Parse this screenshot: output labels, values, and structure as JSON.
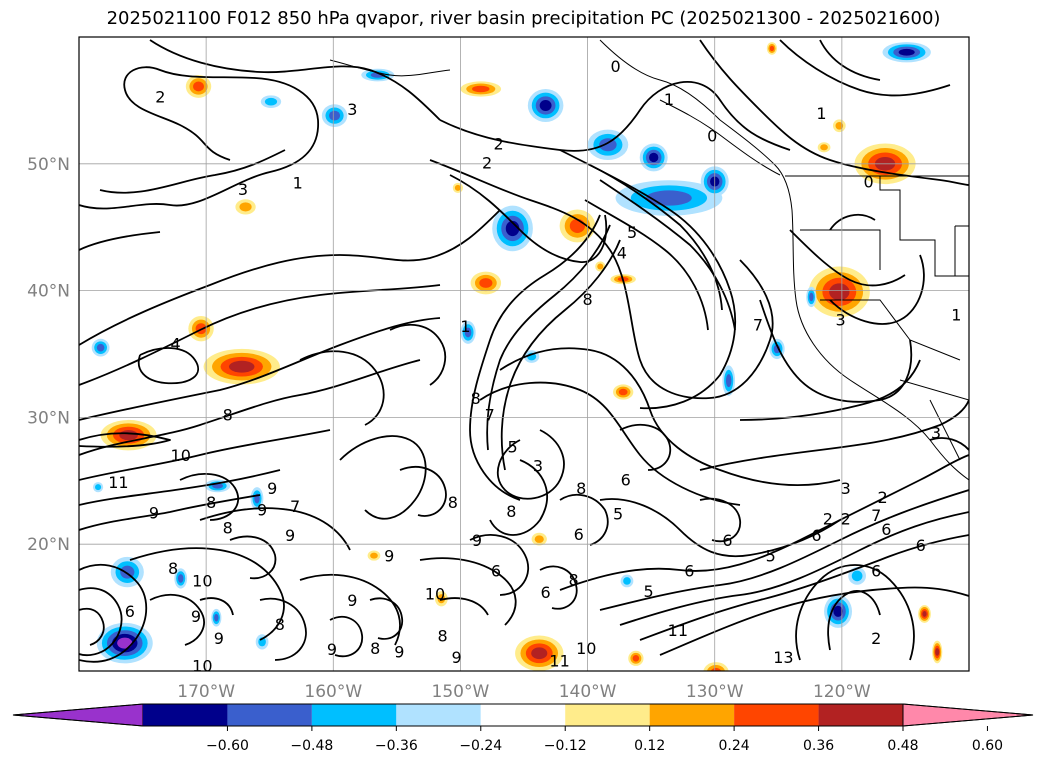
{
  "title": "2025021100 F012 850 hPa qvapor, river basin precipitation PC (2025021300 - 2025021600)",
  "colors": {
    "map_background": "#ffffff",
    "grid": "#a0a0a0",
    "tick_label": "#808080",
    "contour": "#000000"
  },
  "map": {
    "longitude_range": [
      -180,
      -110
    ],
    "latitude_range": [
      10,
      60
    ],
    "longitude_ticks": [
      {
        "value": -170,
        "label": "170°W"
      },
      {
        "value": -160,
        "label": "160°W"
      },
      {
        "value": -150,
        "label": "150°W"
      },
      {
        "value": -140,
        "label": "140°W"
      },
      {
        "value": -130,
        "label": "130°W"
      },
      {
        "value": -120,
        "label": "120°W"
      }
    ],
    "latitude_ticks": [
      {
        "value": 50,
        "label": "50°N"
      },
      {
        "value": 40,
        "label": "40°N"
      },
      {
        "value": 30,
        "label": "30°N"
      },
      {
        "value": 20,
        "label": "20°N"
      }
    ],
    "contour_labels": [
      {
        "text": "0",
        "lon": -137.8,
        "lat": 57.6
      },
      {
        "text": "2",
        "lon": -173.6,
        "lat": 55.2
      },
      {
        "text": "3",
        "lon": -158.5,
        "lat": 54.2
      },
      {
        "text": "1",
        "lon": -162.8,
        "lat": 48.4
      },
      {
        "text": "3",
        "lon": -167.1,
        "lat": 47.9
      },
      {
        "text": "1",
        "lon": -133.6,
        "lat": 55.0
      },
      {
        "text": "0",
        "lon": -130.2,
        "lat": 52.1
      },
      {
        "text": "1",
        "lon": -121.6,
        "lat": 53.9
      },
      {
        "text": "0",
        "lon": -117.9,
        "lat": 48.5
      },
      {
        "text": "2",
        "lon": -147.0,
        "lat": 51.5
      },
      {
        "text": "2",
        "lon": -147.9,
        "lat": 50.0
      },
      {
        "text": "4",
        "lon": -137.3,
        "lat": 42.9
      },
      {
        "text": "5",
        "lon": -136.5,
        "lat": 44.5
      },
      {
        "text": "8",
        "lon": -140.0,
        "lat": 39.2
      },
      {
        "text": "7",
        "lon": -126.6,
        "lat": 37.2
      },
      {
        "text": "3",
        "lon": -120.1,
        "lat": 37.6
      },
      {
        "text": "4",
        "lon": -172.4,
        "lat": 35.7
      },
      {
        "text": "1",
        "lon": -149.6,
        "lat": 37.1
      },
      {
        "text": "8",
        "lon": -148.8,
        "lat": 31.4
      },
      {
        "text": "7",
        "lon": -147.7,
        "lat": 30.1
      },
      {
        "text": "8",
        "lon": -168.3,
        "lat": 30.1
      },
      {
        "text": "10",
        "lon": -172.0,
        "lat": 26.9
      },
      {
        "text": "5",
        "lon": -145.9,
        "lat": 27.6
      },
      {
        "text": "3",
        "lon": -143.9,
        "lat": 26.1
      },
      {
        "text": "3",
        "lon": -119.7,
        "lat": 24.3
      },
      {
        "text": "2",
        "lon": -116.8,
        "lat": 23.6
      },
      {
        "text": "3",
        "lon": -112.6,
        "lat": 28.7
      },
      {
        "text": "7",
        "lon": -117.3,
        "lat": 22.2
      },
      {
        "text": "6",
        "lon": -116.5,
        "lat": 21.1
      },
      {
        "text": "2",
        "lon": -119.7,
        "lat": 21.9
      },
      {
        "text": "2",
        "lon": -121.1,
        "lat": 21.9
      },
      {
        "text": "6",
        "lon": -122.0,
        "lat": 20.6
      },
      {
        "text": "6",
        "lon": -113.8,
        "lat": 19.8
      },
      {
        "text": "9",
        "lon": -164.8,
        "lat": 24.3
      },
      {
        "text": "9",
        "lon": -174.1,
        "lat": 22.4
      },
      {
        "text": "8",
        "lon": -169.6,
        "lat": 23.2
      },
      {
        "text": "11",
        "lon": -176.9,
        "lat": 24.8
      },
      {
        "text": "9",
        "lon": -163.4,
        "lat": 20.6
      },
      {
        "text": "8",
        "lon": -168.3,
        "lat": 21.2
      },
      {
        "text": "9",
        "lon": -148.7,
        "lat": 20.2
      },
      {
        "text": "8",
        "lon": -146.0,
        "lat": 22.5
      },
      {
        "text": "8",
        "lon": -150.6,
        "lat": 23.2
      },
      {
        "text": "7",
        "lon": -163.0,
        "lat": 22.9
      },
      {
        "text": "6",
        "lon": -140.7,
        "lat": 20.7
      },
      {
        "text": "5",
        "lon": -137.6,
        "lat": 22.3
      },
      {
        "text": "6",
        "lon": -129.0,
        "lat": 20.2
      },
      {
        "text": "6",
        "lon": -137.0,
        "lat": 25.0
      },
      {
        "text": "8",
        "lon": -140.5,
        "lat": 24.3
      },
      {
        "text": "6",
        "lon": -132.0,
        "lat": 17.8
      },
      {
        "text": "9",
        "lon": -165.6,
        "lat": 22.6
      },
      {
        "text": "6",
        "lon": -176.0,
        "lat": 14.6
      },
      {
        "text": "10",
        "lon": -170.3,
        "lat": 17.0
      },
      {
        "text": "8",
        "lon": -172.6,
        "lat": 18.0
      },
      {
        "text": "9",
        "lon": -170.8,
        "lat": 14.2
      },
      {
        "text": "8",
        "lon": -164.2,
        "lat": 13.6
      },
      {
        "text": "9",
        "lon": -158.5,
        "lat": 15.5
      },
      {
        "text": "9",
        "lon": -155.6,
        "lat": 19.0
      },
      {
        "text": "10",
        "lon": -152.0,
        "lat": 16.0
      },
      {
        "text": "9",
        "lon": -154.8,
        "lat": 11.4
      },
      {
        "text": "8",
        "lon": -156.7,
        "lat": 11.7
      },
      {
        "text": "9",
        "lon": -160.1,
        "lat": 11.6
      },
      {
        "text": "9",
        "lon": -150.3,
        "lat": 11.0
      },
      {
        "text": "8",
        "lon": -151.4,
        "lat": 12.7
      },
      {
        "text": "9",
        "lon": -169.0,
        "lat": 12.5
      },
      {
        "text": "10",
        "lon": -170.3,
        "lat": 10.3
      },
      {
        "text": "6",
        "lon": -143.3,
        "lat": 16.1
      },
      {
        "text": "8",
        "lon": -141.1,
        "lat": 17.1
      },
      {
        "text": "6",
        "lon": -147.2,
        "lat": 17.8
      },
      {
        "text": "5",
        "lon": -135.2,
        "lat": 16.2
      },
      {
        "text": "5",
        "lon": -125.6,
        "lat": 19.0
      },
      {
        "text": "11",
        "lon": -132.9,
        "lat": 13.1
      },
      {
        "text": "10",
        "lon": -140.1,
        "lat": 11.7
      },
      {
        "text": "11",
        "lon": -142.2,
        "lat": 10.7
      },
      {
        "text": "13",
        "lon": -124.6,
        "lat": 11.0
      },
      {
        "text": "6",
        "lon": -117.3,
        "lat": 17.8
      },
      {
        "text": "2",
        "lon": -117.3,
        "lat": 12.5
      },
      {
        "text": "1",
        "lon": -111.0,
        "lat": 38.0
      }
    ],
    "shaded_patches": [
      {
        "lon": -170.6,
        "lat": 56.1,
        "rlon": 1.0,
        "rlat": 0.9,
        "level": 0.36
      },
      {
        "lon": -166.9,
        "lat": 46.6,
        "rlon": 0.8,
        "rlat": 0.6,
        "level": 0.24
      },
      {
        "lon": -156.5,
        "lat": 57.0,
        "rlon": 1.3,
        "rlat": 0.5,
        "level": -0.36
      },
      {
        "lon": -164.9,
        "lat": 54.9,
        "rlon": 0.8,
        "rlat": 0.5,
        "level": -0.24
      },
      {
        "lon": -159.9,
        "lat": 53.8,
        "rlon": 1.0,
        "rlat": 0.9,
        "level": -0.36
      },
      {
        "lon": -143.3,
        "lat": 54.6,
        "rlon": 1.4,
        "rlat": 1.3,
        "level": -0.48
      },
      {
        "lon": -138.4,
        "lat": 51.5,
        "rlon": 1.6,
        "rlat": 1.2,
        "level": -0.36
      },
      {
        "lon": -148.4,
        "lat": 55.9,
        "rlon": 1.6,
        "rlat": 0.6,
        "level": 0.36
      },
      {
        "lon": -133.6,
        "lat": 47.3,
        "rlon": 4.2,
        "rlat": 1.4,
        "level": -0.36
      },
      {
        "lon": -130.0,
        "lat": 48.6,
        "rlon": 1.1,
        "rlat": 1.2,
        "level": -0.48
      },
      {
        "lon": -134.8,
        "lat": 50.5,
        "rlon": 1.1,
        "rlat": 1.1,
        "level": -0.48
      },
      {
        "lon": -145.9,
        "lat": 44.9,
        "rlon": 1.6,
        "rlat": 1.8,
        "level": -0.48
      },
      {
        "lon": -140.8,
        "lat": 45.1,
        "rlon": 1.4,
        "rlat": 1.3,
        "level": 0.36
      },
      {
        "lon": -116.6,
        "lat": 50.0,
        "rlon": 2.4,
        "rlat": 1.6,
        "level": 0.48
      },
      {
        "lon": -114.9,
        "lat": 58.8,
        "rlon": 1.9,
        "rlat": 0.8,
        "level": -0.48
      },
      {
        "lon": -120.2,
        "lat": 39.9,
        "rlon": 2.4,
        "rlat": 2.0,
        "level": 0.48
      },
      {
        "lon": -148.0,
        "lat": 40.6,
        "rlon": 1.2,
        "rlat": 0.9,
        "level": 0.36
      },
      {
        "lon": -137.2,
        "lat": 40.9,
        "rlon": 1.0,
        "rlat": 0.4,
        "level": 0.36
      },
      {
        "lon": -170.4,
        "lat": 37.0,
        "rlon": 1.0,
        "rlat": 1.0,
        "level": 0.36
      },
      {
        "lon": -167.2,
        "lat": 34.0,
        "rlon": 3.0,
        "rlat": 1.4,
        "level": 0.48
      },
      {
        "lon": -176.1,
        "lat": 28.6,
        "rlon": 2.2,
        "rlat": 1.2,
        "level": 0.48
      },
      {
        "lon": -178.3,
        "lat": 35.5,
        "rlon": 0.7,
        "rlat": 0.7,
        "level": -0.36
      },
      {
        "lon": -149.4,
        "lat": 36.7,
        "rlon": 0.6,
        "rlat": 0.9,
        "level": -0.36
      },
      {
        "lon": -128.9,
        "lat": 32.9,
        "rlon": 0.5,
        "rlat": 1.2,
        "level": -0.36
      },
      {
        "lon": -125.1,
        "lat": 35.4,
        "rlon": 0.6,
        "rlat": 0.8,
        "level": -0.36
      },
      {
        "lon": -122.4,
        "lat": 39.5,
        "rlon": 0.4,
        "rlat": 0.8,
        "level": -0.36
      },
      {
        "lon": -137.2,
        "lat": 32.0,
        "rlon": 0.8,
        "rlat": 0.6,
        "level": 0.36
      },
      {
        "lon": -144.4,
        "lat": 34.8,
        "rlon": 0.6,
        "rlat": 0.5,
        "level": -0.24
      },
      {
        "lon": -176.2,
        "lat": 17.8,
        "rlon": 1.3,
        "rlat": 1.2,
        "level": -0.36
      },
      {
        "lon": -176.4,
        "lat": 12.2,
        "rlon": 2.2,
        "rlat": 1.6,
        "level": -0.6
      },
      {
        "lon": -169.1,
        "lat": 24.6,
        "rlon": 1.0,
        "rlat": 0.5,
        "level": -0.36
      },
      {
        "lon": -166.0,
        "lat": 23.6,
        "rlon": 0.5,
        "rlat": 0.9,
        "level": -0.36
      },
      {
        "lon": -172.0,
        "lat": 17.3,
        "rlon": 0.5,
        "rlat": 0.8,
        "level": -0.36
      },
      {
        "lon": -169.2,
        "lat": 14.2,
        "rlon": 0.4,
        "rlat": 0.7,
        "level": -0.36
      },
      {
        "lon": -165.6,
        "lat": 12.3,
        "rlon": 0.5,
        "rlat": 0.6,
        "level": -0.24
      },
      {
        "lon": -143.8,
        "lat": 11.4,
        "rlon": 1.9,
        "rlat": 1.4,
        "level": 0.48
      },
      {
        "lon": -136.2,
        "lat": 11.0,
        "rlon": 0.6,
        "rlat": 0.6,
        "level": 0.36
      },
      {
        "lon": -129.9,
        "lat": 9.9,
        "rlon": 1.0,
        "rlat": 0.8,
        "level": 0.36
      },
      {
        "lon": -120.3,
        "lat": 14.7,
        "rlon": 1.1,
        "rlat": 1.3,
        "level": -0.48
      },
      {
        "lon": -118.8,
        "lat": 17.5,
        "rlon": 0.7,
        "rlat": 0.7,
        "level": -0.24
      },
      {
        "lon": -113.5,
        "lat": 14.5,
        "rlon": 0.5,
        "rlat": 0.7,
        "level": 0.48
      },
      {
        "lon": -112.5,
        "lat": 11.5,
        "rlon": 0.4,
        "rlat": 0.9,
        "level": 0.48
      },
      {
        "lon": -151.5,
        "lat": 15.7,
        "rlon": 0.5,
        "rlat": 0.6,
        "level": 0.24
      },
      {
        "lon": -143.8,
        "lat": 20.4,
        "rlon": 0.6,
        "rlat": 0.5,
        "level": 0.24
      },
      {
        "lon": -156.8,
        "lat": 19.1,
        "rlon": 0.5,
        "rlat": 0.4,
        "level": 0.24
      },
      {
        "lon": -136.9,
        "lat": 17.1,
        "rlon": 0.5,
        "rlat": 0.5,
        "level": -0.24
      },
      {
        "lon": -120.2,
        "lat": 53.0,
        "rlon": 0.5,
        "rlat": 0.5,
        "level": 0.24
      },
      {
        "lon": -121.4,
        "lat": 51.3,
        "rlon": 0.5,
        "rlat": 0.4,
        "level": 0.24
      },
      {
        "lon": -139.0,
        "lat": 41.9,
        "rlon": 0.4,
        "rlat": 0.4,
        "level": 0.24
      },
      {
        "lon": -150.2,
        "lat": 48.1,
        "rlon": 0.4,
        "rlat": 0.4,
        "level": 0.24
      },
      {
        "lon": -178.5,
        "lat": 24.5,
        "rlon": 0.4,
        "rlat": 0.4,
        "level": -0.24
      },
      {
        "lon": -125.5,
        "lat": 59.1,
        "rlon": 0.4,
        "rlat": 0.5,
        "level": 0.36
      }
    ]
  },
  "colorbar": {
    "ticks": [
      "-0.60",
      "-0.48",
      "-0.36",
      "-0.24",
      "-0.12",
      "0.12",
      "0.24",
      "0.36",
      "0.48",
      "0.60"
    ],
    "bins": [
      {
        "from": "-inf",
        "to": -0.6,
        "color": "#9932cc"
      },
      {
        "from": -0.6,
        "to": -0.48,
        "color": "#00008b"
      },
      {
        "from": -0.48,
        "to": -0.36,
        "color": "#3a5fcd"
      },
      {
        "from": -0.36,
        "to": -0.24,
        "color": "#00bfff"
      },
      {
        "from": -0.24,
        "to": -0.12,
        "color": "#b0e2ff"
      },
      {
        "from": -0.12,
        "to": 0.12,
        "color": "#ffffff"
      },
      {
        "from": 0.12,
        "to": 0.24,
        "color": "#ffec8b"
      },
      {
        "from": 0.24,
        "to": 0.36,
        "color": "#ffa500"
      },
      {
        "from": 0.36,
        "to": 0.48,
        "color": "#ff4500"
      },
      {
        "from": 0.48,
        "to": 0.6,
        "color": "#b22222"
      },
      {
        "from": 0.6,
        "to": "inf",
        "color": "#ff88aa"
      }
    ]
  }
}
